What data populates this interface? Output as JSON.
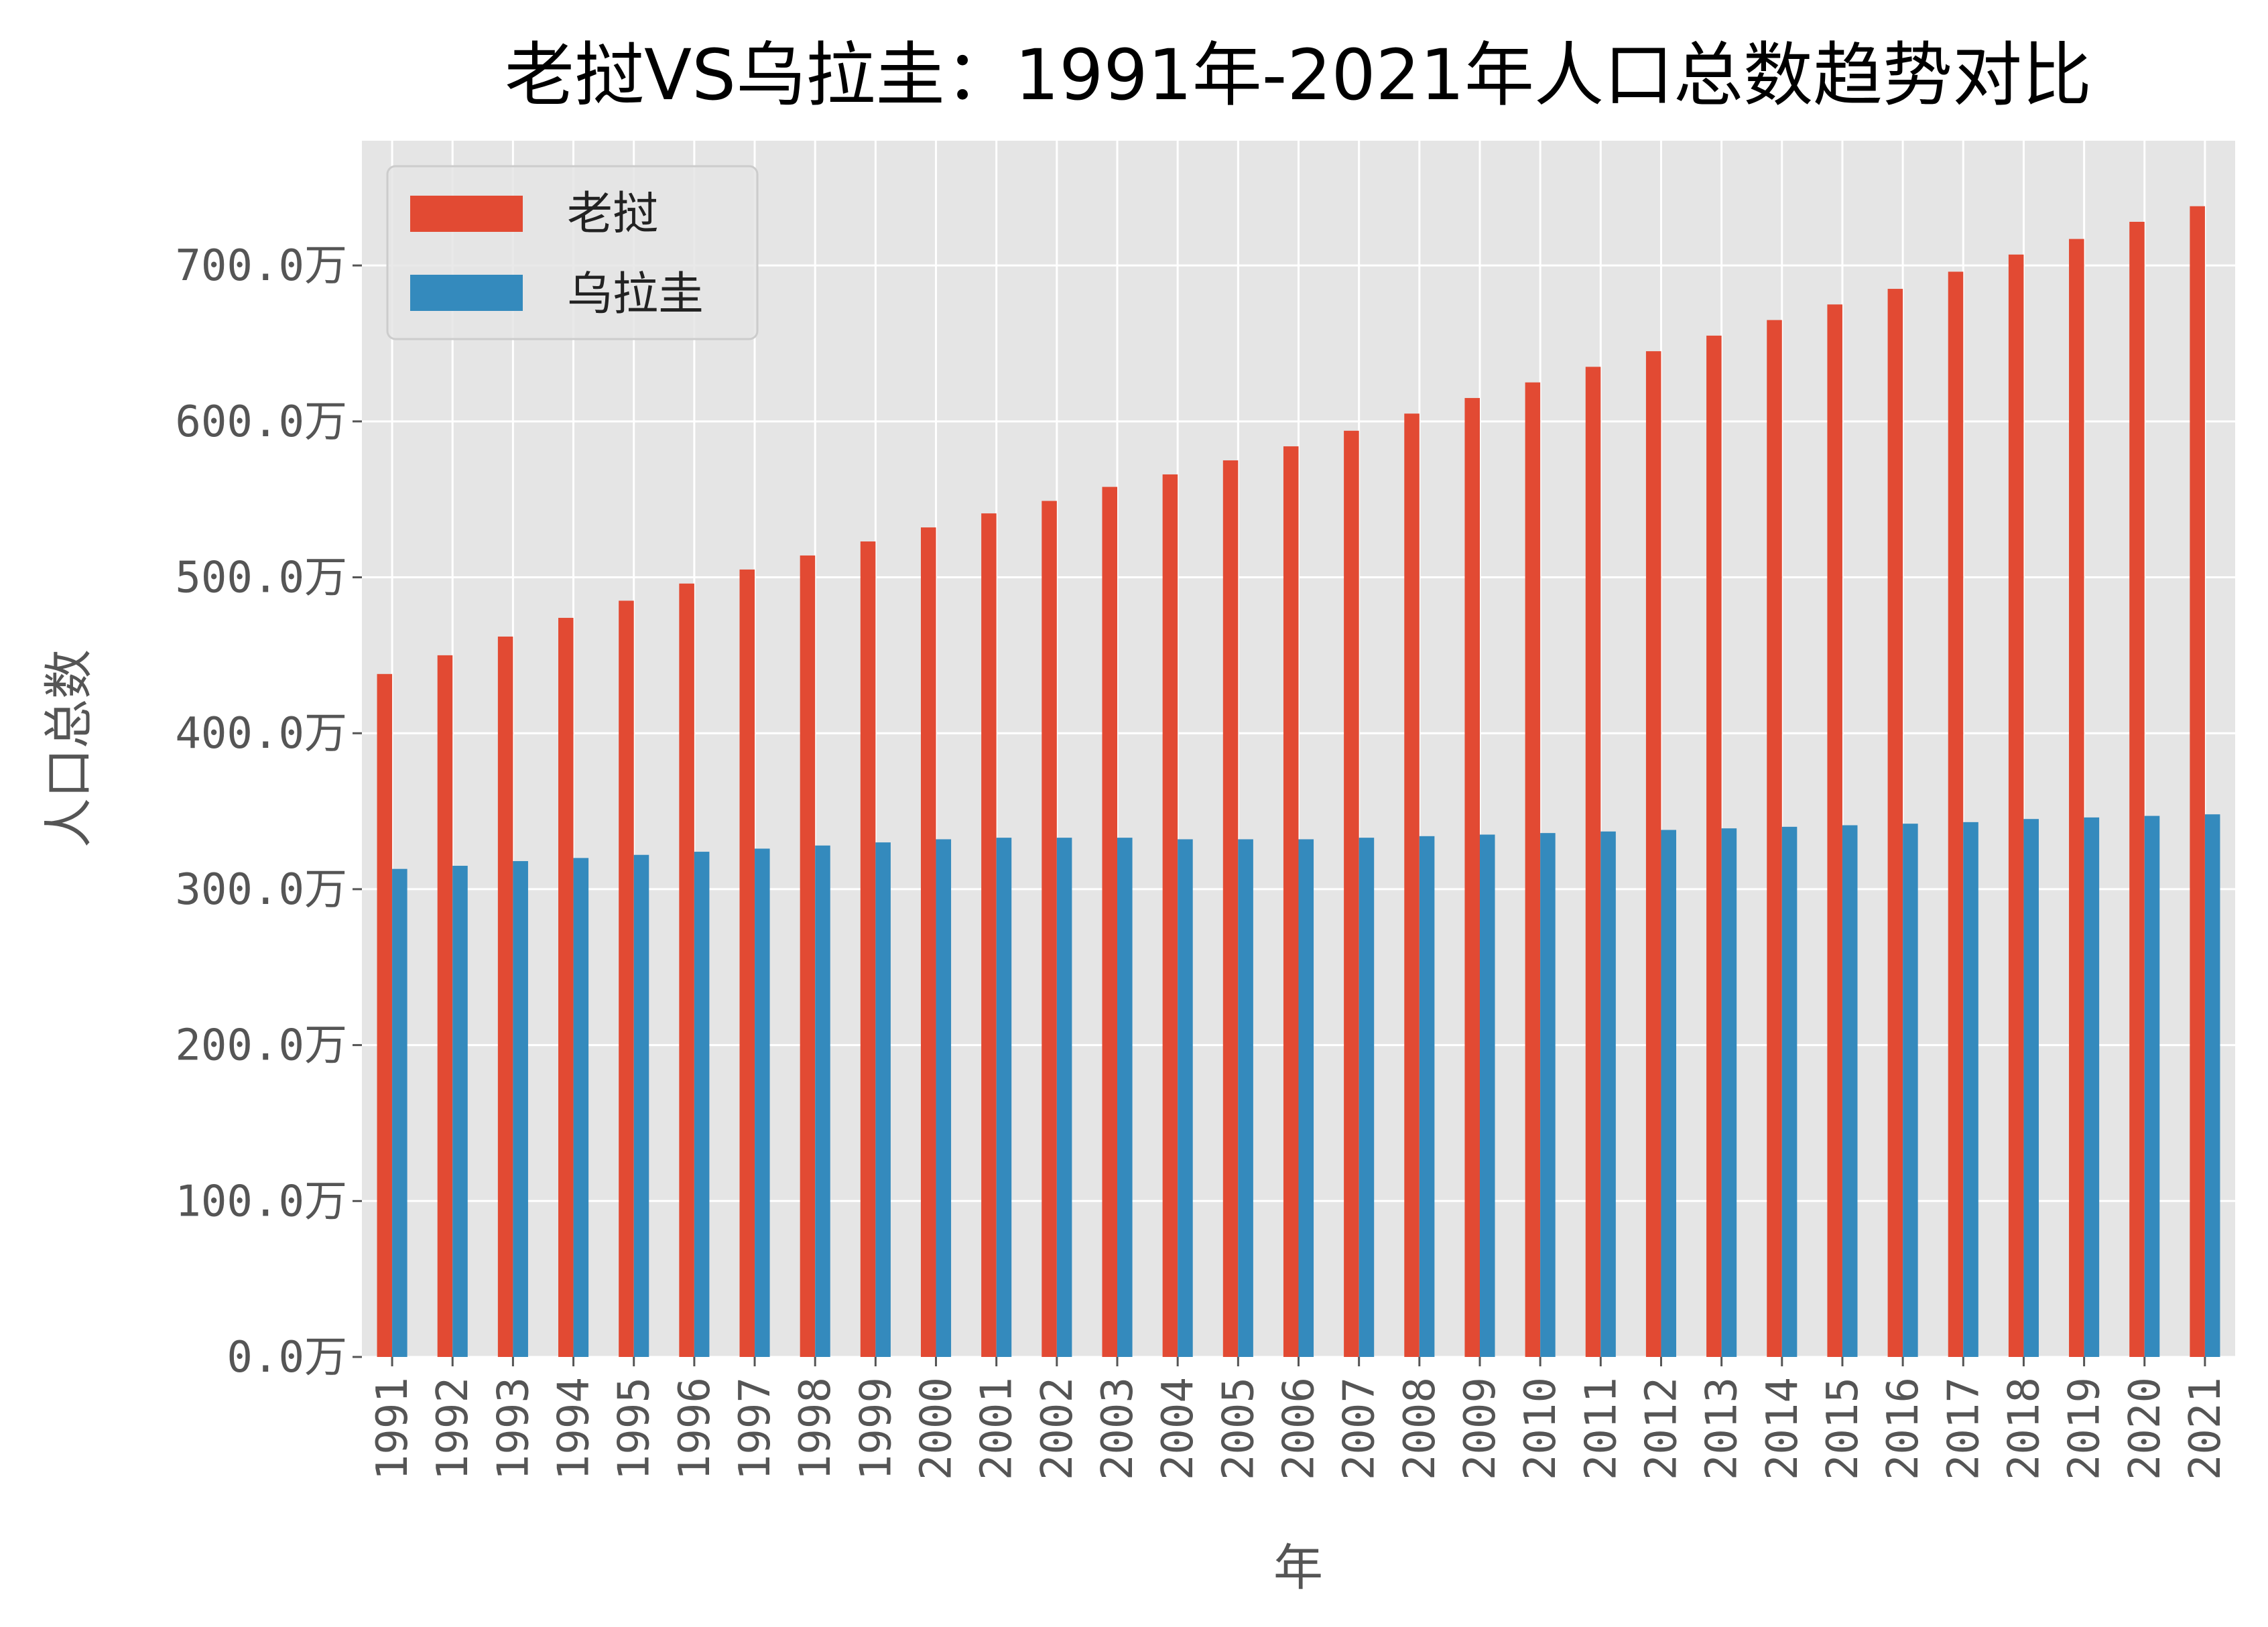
{
  "chart_data": {
    "type": "bar",
    "title": "老挝VS乌拉圭：1991年-2021年人口总数趋势对比",
    "xlabel": "年",
    "ylabel": "人口总数",
    "y_unit_suffix": "万",
    "ylim": [
      0,
      780
    ],
    "yticks": [
      0,
      100,
      200,
      300,
      400,
      500,
      600,
      700
    ],
    "ytick_labels": [
      "0.0万",
      "100.0万",
      "200.0万",
      "300.0万",
      "400.0万",
      "500.0万",
      "600.0万",
      "700.0万"
    ],
    "grid": true,
    "legend_position": "top-left",
    "categories": [
      "1991",
      "1992",
      "1993",
      "1994",
      "1995",
      "1996",
      "1997",
      "1998",
      "1999",
      "2000",
      "2001",
      "2002",
      "2003",
      "2004",
      "2005",
      "2006",
      "2007",
      "2008",
      "2009",
      "2010",
      "2011",
      "2012",
      "2013",
      "2014",
      "2015",
      "2016",
      "2017",
      "2018",
      "2019",
      "2020",
      "2021"
    ],
    "series": [
      {
        "name": "老挝",
        "color": "#E24A33",
        "values": [
          438,
          450,
          462,
          474,
          485,
          496,
          505,
          514,
          523,
          532,
          541,
          549,
          558,
          566,
          575,
          584,
          594,
          605,
          615,
          625,
          635,
          645,
          655,
          665,
          675,
          685,
          696,
          707,
          717,
          728,
          738
        ]
      },
      {
        "name": "乌拉圭",
        "color": "#348ABD",
        "values": [
          313,
          315,
          318,
          320,
          322,
          324,
          326,
          328,
          330,
          332,
          333,
          333,
          333,
          332,
          332,
          332,
          333,
          334,
          335,
          336,
          337,
          338,
          339,
          340,
          341,
          342,
          343,
          345,
          346,
          347,
          348
        ]
      }
    ]
  }
}
